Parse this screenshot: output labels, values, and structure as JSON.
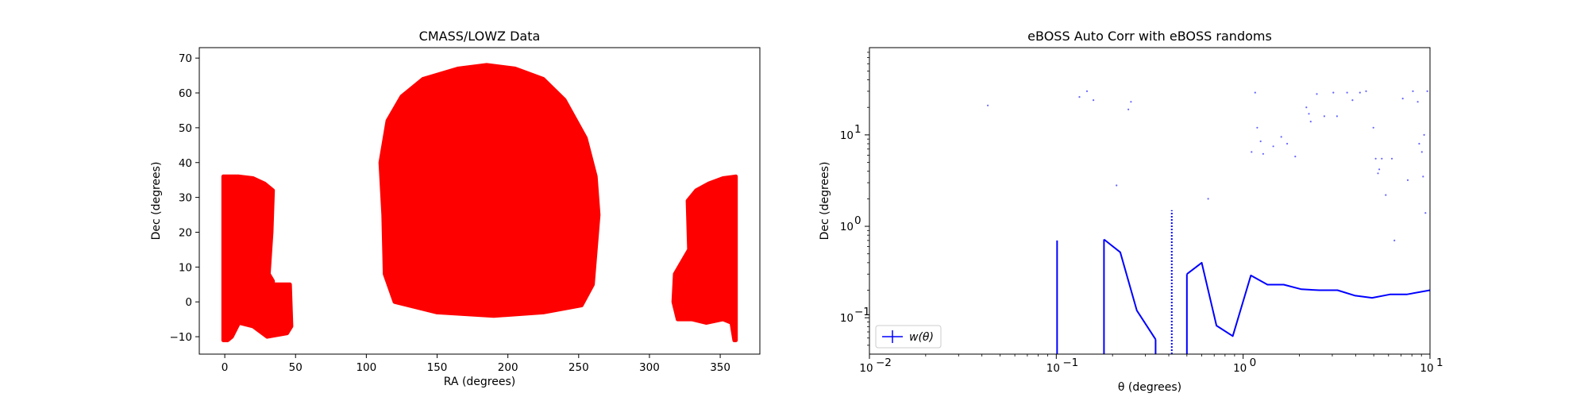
{
  "chart_data": [
    {
      "type": "scatter",
      "title": "CMASS/LOWZ Data",
      "xlabel": "RA (degrees)",
      "ylabel": "Dec (degrees)",
      "xlim": [
        -18,
        378
      ],
      "ylim": [
        -15,
        73
      ],
      "xticks": [
        0,
        50,
        100,
        150,
        200,
        250,
        300,
        350
      ],
      "xtick_labels": [
        "0",
        "50",
        "100",
        "150",
        "200",
        "250",
        "300",
        "350"
      ],
      "yticks": [
        -10,
        0,
        10,
        20,
        30,
        40,
        50,
        60,
        70
      ],
      "ytick_labels": [
        "−10",
        "0",
        "10",
        "20",
        "30",
        "40",
        "50",
        "60",
        "70"
      ],
      "grid": false,
      "marker_color": "#ff0000",
      "footprint_regions": [
        {
          "name": "south-left",
          "ra_dec_outline": [
            [
              -1,
              -11
            ],
            [
              -1,
              36
            ],
            [
              10,
              36
            ],
            [
              20,
              35.5
            ],
            [
              28,
              34
            ],
            [
              34,
              32
            ],
            [
              33,
              20
            ],
            [
              31,
              8
            ],
            [
              34,
              6
            ],
            [
              34,
              5
            ],
            [
              46,
              5
            ],
            [
              47,
              -7
            ],
            [
              44,
              -9
            ],
            [
              30,
              -10
            ],
            [
              20,
              -7
            ],
            [
              10,
              -6
            ],
            [
              5,
              -10
            ],
            [
              2,
              -11
            ]
          ]
        },
        {
          "name": "north-cap",
          "ra_dec_outline": [
            [
              110,
              40
            ],
            [
              115,
              52
            ],
            [
              125,
              59
            ],
            [
              140,
              64
            ],
            [
              165,
              67
            ],
            [
              185,
              68
            ],
            [
              205,
              67
            ],
            [
              225,
              64
            ],
            [
              240,
              58
            ],
            [
              255,
              47
            ],
            [
              262,
              36
            ],
            [
              264,
              25
            ],
            [
              260,
              5
            ],
            [
              252,
              -1
            ],
            [
              225,
              -3
            ],
            [
              190,
              -4
            ],
            [
              150,
              -3
            ],
            [
              120,
              0
            ],
            [
              113,
              8
            ],
            [
              112,
              25
            ]
          ]
        },
        {
          "name": "south-right",
          "ra_dec_outline": [
            [
              361,
              -11
            ],
            [
              361,
              36
            ],
            [
              352,
              35.5
            ],
            [
              342,
              34
            ],
            [
              333,
              32
            ],
            [
              327,
              29
            ],
            [
              328,
              15
            ],
            [
              318,
              8
            ],
            [
              317,
              0
            ],
            [
              320,
              -5
            ],
            [
              330,
              -5
            ],
            [
              340,
              -6
            ],
            [
              352,
              -5
            ],
            [
              358,
              -6
            ],
            [
              360,
              -11
            ]
          ]
        }
      ]
    },
    {
      "type": "line",
      "title": "eBOSS Auto Corr with eBOSS randoms",
      "xlabel": "θ (degrees)",
      "ylabel": "Dec (degrees)",
      "xscale": "log",
      "yscale": "log",
      "xlim": [
        0.01,
        10
      ],
      "ylim": [
        0.04,
        90
      ],
      "xticks": [
        0.01,
        0.1,
        1,
        10
      ],
      "xtick_labels": [
        "10",
        "10",
        "10",
        "10"
      ],
      "xtick_exponents": [
        "−2",
        "−1",
        "0",
        "1"
      ],
      "yticks": [
        0.1,
        1,
        10
      ],
      "ytick_labels": [
        "10",
        "10",
        "10"
      ],
      "ytick_exponents": [
        "−1",
        "0",
        "1"
      ],
      "grid": false,
      "legend_placement": "lower-left",
      "series": [
        {
          "name": "w(θ)",
          "color": "#0000ff",
          "x": [
            0.101,
            0.18,
            0.22,
            0.27,
            0.34,
            0.5,
            0.6,
            0.72,
            0.88,
            1.1,
            1.35,
            1.65,
            2.05,
            2.55,
            3.2,
            3.95,
            4.9,
            6.1,
            7.5,
            10.0
          ],
          "y": [
            0.7,
            0.72,
            0.52,
            0.12,
            0.058,
            0.3,
            0.4,
            0.082,
            0.063,
            0.29,
            0.23,
            0.23,
            0.205,
            0.2,
            0.2,
            0.175,
            0.165,
            0.18,
            0.18,
            0.2
          ],
          "break_before": [
            1,
            5
          ],
          "drop_to_bottom": [
            0,
            1,
            4,
            5
          ]
        }
      ],
      "errorbars": [
        {
          "x": 0.415,
          "y_low": 0.04,
          "y_high": 1.5,
          "style": "dotted",
          "color": "#0000ff"
        }
      ],
      "scatter_points": {
        "color": "#6666ff",
        "x": [
          0.043,
          0.133,
          0.146,
          0.158,
          0.21,
          0.243,
          0.251,
          1.11,
          1.16,
          1.19,
          1.24,
          1.28,
          1.45,
          1.6,
          1.72,
          1.9,
          2.18,
          2.25,
          2.3,
          2.48,
          2.72,
          3.04,
          3.18,
          3.6,
          3.85,
          4.22,
          4.55,
          4.98,
          5.12,
          5.27,
          5.52,
          5.8,
          6.25,
          6.45,
          7.15,
          7.6,
          8.1,
          8.6,
          8.75,
          9.05,
          9.18,
          9.3,
          9.46,
          9.67,
          0.65,
          5.35
        ],
        "y": [
          21,
          26,
          30,
          24,
          2.8,
          19,
          23,
          6.5,
          29,
          12,
          8.5,
          6.2,
          7.5,
          9.5,
          8.0,
          5.8,
          20,
          17,
          14,
          28,
          16,
          29,
          16,
          29,
          24,
          29,
          30,
          12,
          5.5,
          3.8,
          5.5,
          2.2,
          5.5,
          0.7,
          25,
          3.2,
          30,
          23,
          8.0,
          6.5,
          3.5,
          10,
          1.4,
          30,
          2.0,
          4.2
        ]
      }
    }
  ]
}
